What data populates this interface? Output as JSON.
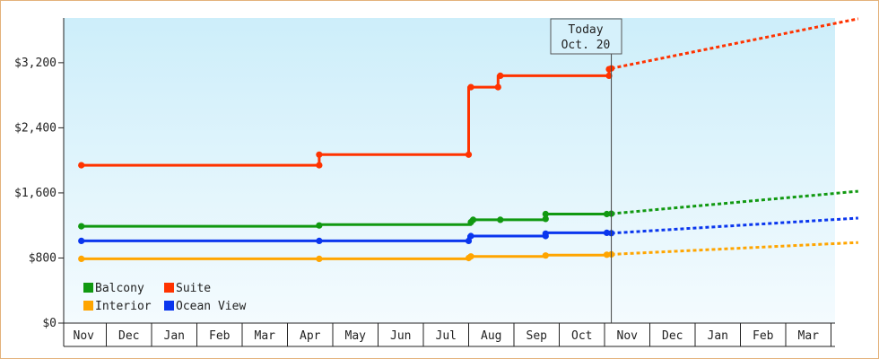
{
  "chart_data": {
    "type": "line",
    "x_labels": [
      "Nov",
      "Dec",
      "Jan",
      "Feb",
      "Mar",
      "Apr",
      "May",
      "Jun",
      "Jul",
      "Aug",
      "Sep",
      "Oct",
      "Nov",
      "Dec",
      "Jan",
      "Feb",
      "Mar"
    ],
    "y_ticks": [
      "$0",
      "$800",
      "$1,600",
      "$2,400",
      "$3,200"
    ],
    "y_tick_values": [
      0,
      800,
      1600,
      2400,
      3200
    ],
    "ylim": [
      0,
      3750
    ],
    "today": {
      "line1": "Today",
      "line2": "Oct. 20",
      "x": 11.65
    },
    "legend": {
      "placement": "bottom-left",
      "entries": [
        {
          "key": "balcony",
          "label": "Balcony",
          "color": "#119911"
        },
        {
          "key": "suite",
          "label": "Suite",
          "color": "#ff3300"
        },
        {
          "key": "interior",
          "label": "Interior",
          "color": "#ffa500"
        },
        {
          "key": "ocean",
          "label": "Ocean View",
          "color": "#0a36ee"
        }
      ]
    },
    "series": [
      {
        "name": "Suite",
        "color": "#ff3300",
        "history": [
          [
            -0.05,
            1940
          ],
          [
            5.2,
            1940
          ],
          [
            5.2,
            2070
          ],
          [
            8.5,
            2070
          ],
          [
            8.5,
            2900
          ],
          [
            9.15,
            2900
          ],
          [
            9.15,
            3040
          ],
          [
            11.6,
            3040
          ],
          [
            11.6,
            3130
          ],
          [
            11.65,
            3130
          ]
        ],
        "markers": [
          [
            -0.05,
            1940
          ],
          [
            5.2,
            1940
          ],
          [
            5.2,
            2070
          ],
          [
            8.5,
            2070
          ],
          [
            8.55,
            2900
          ],
          [
            9.15,
            2900
          ],
          [
            9.2,
            3040
          ],
          [
            11.6,
            3040
          ],
          [
            11.6,
            3120
          ],
          [
            11.65,
            3130
          ]
        ],
        "forecast": [
          [
            11.65,
            3130
          ],
          [
            17.1,
            3740
          ]
        ]
      },
      {
        "name": "Balcony",
        "color": "#119911",
        "history": [
          [
            -0.05,
            1190
          ],
          [
            5.2,
            1190
          ],
          [
            5.2,
            1210
          ],
          [
            8.55,
            1210
          ],
          [
            8.55,
            1270
          ],
          [
            9.2,
            1270
          ],
          [
            10.2,
            1270
          ],
          [
            10.2,
            1340
          ],
          [
            11.65,
            1340
          ]
        ],
        "markers": [
          [
            -0.05,
            1190
          ],
          [
            5.2,
            1200
          ],
          [
            8.55,
            1240
          ],
          [
            8.6,
            1270
          ],
          [
            9.2,
            1270
          ],
          [
            10.2,
            1280
          ],
          [
            10.2,
            1340
          ],
          [
            11.55,
            1340
          ],
          [
            11.65,
            1345
          ]
        ],
        "forecast": [
          [
            11.65,
            1345
          ],
          [
            17.1,
            1620
          ]
        ]
      },
      {
        "name": "Ocean View",
        "color": "#0a36ee",
        "history": [
          [
            -0.05,
            1010
          ],
          [
            8.5,
            1010
          ],
          [
            8.5,
            1070
          ],
          [
            10.2,
            1070
          ],
          [
            10.2,
            1110
          ],
          [
            11.65,
            1110
          ]
        ],
        "markers": [
          [
            -0.05,
            1010
          ],
          [
            5.2,
            1010
          ],
          [
            8.5,
            1010
          ],
          [
            8.55,
            1070
          ],
          [
            10.2,
            1070
          ],
          [
            10.2,
            1100
          ],
          [
            11.55,
            1110
          ],
          [
            11.65,
            1105
          ]
        ],
        "forecast": [
          [
            11.65,
            1105
          ],
          [
            17.1,
            1290
          ]
        ]
      },
      {
        "name": "Interior",
        "color": "#ffa500",
        "history": [
          [
            -0.05,
            790
          ],
          [
            8.5,
            790
          ],
          [
            8.5,
            820
          ],
          [
            10.2,
            820
          ],
          [
            10.2,
            835
          ],
          [
            11.65,
            835
          ]
        ],
        "markers": [
          [
            -0.05,
            790
          ],
          [
            5.2,
            790
          ],
          [
            8.5,
            800
          ],
          [
            8.55,
            820
          ],
          [
            10.2,
            830
          ],
          [
            11.55,
            840
          ],
          [
            11.65,
            845
          ]
        ],
        "forecast": [
          [
            11.65,
            845
          ],
          [
            17.1,
            990
          ]
        ]
      }
    ]
  }
}
